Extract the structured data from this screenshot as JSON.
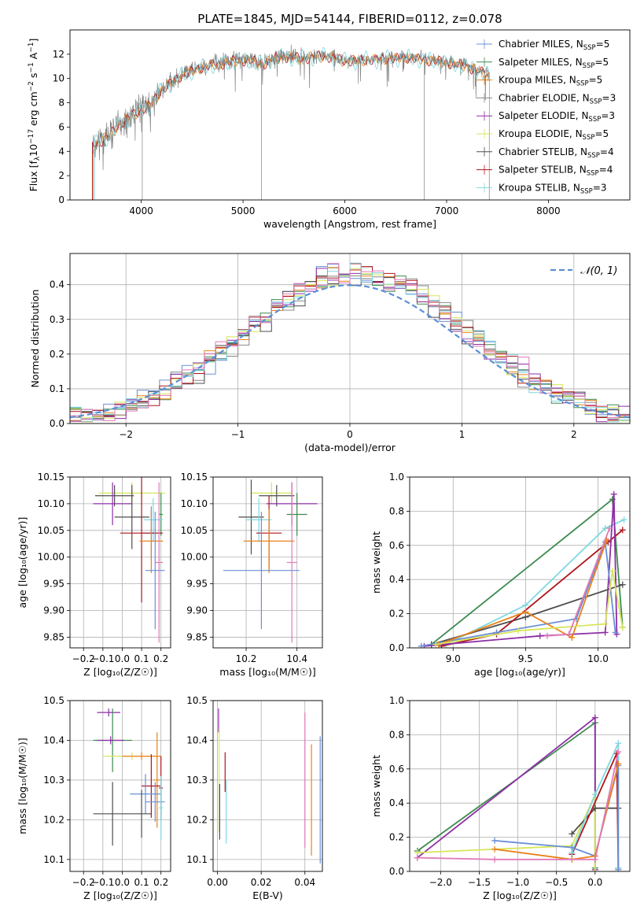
{
  "chart_data": [
    {
      "id": "spectrum",
      "type": "line",
      "title": "PLATE=1845, MJD=54144, FIBERID=0112, z=0.078",
      "xlabel": "wavelength [Angstrom, rest frame]",
      "ylabel_parts": [
        "Flux [f",
        "λ",
        "10",
        "−17",
        " erg cm",
        "−2",
        " s",
        "−1",
        " A",
        "−1",
        "]"
      ],
      "xlim": [
        3300,
        8800
      ],
      "ylim": [
        0,
        14
      ],
      "xticks": [
        4000,
        5000,
        6000,
        7000,
        8000
      ],
      "yticks": [
        0,
        2,
        4,
        6,
        8,
        10,
        12
      ],
      "grid": false,
      "legend_placement": "upper-right",
      "legend": [
        {
          "name": "Chabrier MILES",
          "nssp": "5",
          "color": "#6a8fd6"
        },
        {
          "name": "Salpeter MILES",
          "nssp": "5",
          "color": "#3d8a4e"
        },
        {
          "name": "Kroupa MILES",
          "nssp": "5",
          "color": "#e8821a"
        },
        {
          "name": "Chabrier ELODIE",
          "nssp": "3",
          "color": "#888888"
        },
        {
          "name": "Salpeter ELODIE",
          "nssp": "3",
          "color": "#8e2ea7"
        },
        {
          "name": "Kroupa ELODIE",
          "nssp": "5",
          "color": "#d7e65a"
        },
        {
          "name": "Chabrier STELIB",
          "nssp": "4",
          "color": "#4d4d4d"
        },
        {
          "name": "Salpeter STELIB",
          "nssp": "4",
          "color": "#b0141c"
        },
        {
          "name": "Kroupa STELIB",
          "nssp": "3",
          "color": "#7fd8e0"
        }
      ],
      "nssp_sub": "SSP",
      "nssp_prefix": "N",
      "data_color": "#808080",
      "model_colors": [
        "#b0141c",
        "#e8821a",
        "#7fd8e0"
      ],
      "anchors_x": [
        3520,
        3600,
        3700,
        3800,
        3900,
        4000,
        4100,
        4200,
        4300,
        4400,
        4500,
        4600,
        4700,
        4800,
        4900,
        5000,
        5100,
        5200,
        5300,
        5400,
        5500,
        5600,
        5700,
        5800,
        5900,
        6000,
        6200,
        6400,
        6600,
        6800,
        7000,
        7200,
        7400
      ],
      "anchors_y": [
        4.6,
        4.9,
        5.5,
        6.4,
        7.0,
        7.5,
        8.0,
        9.1,
        9.8,
        10.3,
        10.7,
        11.0,
        11.2,
        11.3,
        11.5,
        11.6,
        11.5,
        11.3,
        11.7,
        11.9,
        11.8,
        11.7,
        11.9,
        11.9,
        11.8,
        11.5,
        11.6,
        11.7,
        11.8,
        11.6,
        11.4,
        11.1,
        10.4
      ]
    },
    {
      "id": "residuals",
      "type": "step",
      "xlabel": "(data-model)/error",
      "ylabel": "Normed distribution",
      "xlim": [
        -2.5,
        2.5
      ],
      "ylim": [
        0,
        0.49
      ],
      "xticks": [
        -2,
        -1,
        0,
        1,
        2
      ],
      "yticks": [
        0.0,
        0.1,
        0.2,
        0.3,
        0.4
      ],
      "grid": true,
      "bin_width": 0.1,
      "legend": "𝒩(0, 1)",
      "legend_placement": "upper-right",
      "normal_color": "#5b8fd6",
      "series_colors": [
        "#6a8fd6",
        "#3d8a4e",
        "#e8821a",
        "#888888",
        "#8e2ea7",
        "#d7e65a",
        "#4d4d4d",
        "#b0141c",
        "#7fd8e0",
        "#e07ab8"
      ]
    },
    {
      "id": "age_vs_Z",
      "type": "errorbar",
      "xlabel": "Z [log₁₀(Z/Z☉)]",
      "ylabel": "age  [log₁₀(age/yr)]",
      "xlim": [
        -0.27,
        0.25
      ],
      "ylim": [
        9.83,
        10.15
      ],
      "xticks": [
        -0.2,
        -0.1,
        0.0,
        0.1,
        0.2
      ],
      "yticks": [
        9.85,
        9.9,
        9.95,
        10.0,
        10.05,
        10.1,
        10.15
      ],
      "grid": true,
      "points": [
        {
          "x": 0.05,
          "y": 10.12,
          "xe": 0.17,
          "ye": 0.02,
          "c": "#d7e65a"
        },
        {
          "x": -0.04,
          "y": 10.115,
          "xe": 0.1,
          "ye": 0.02,
          "c": "#4d4d4d"
        },
        {
          "x": -0.05,
          "y": 10.1,
          "xe": 0.1,
          "ye": 0.04,
          "c": "#8e2ea7"
        },
        {
          "x": 0.2,
          "y": 10.08,
          "xe": 0.01,
          "ye": 0.04,
          "c": "#3d8a4e"
        },
        {
          "x": 0.05,
          "y": 10.075,
          "xe": 0.09,
          "ye": 0.06,
          "c": "#4d4d4d"
        },
        {
          "x": 0.16,
          "y": 10.07,
          "xe": 0.05,
          "ye": 0.04,
          "c": "#7fd8e0"
        },
        {
          "x": 0.15,
          "y": 10.045,
          "xe": 0.05,
          "ye": 0.05,
          "c": "#6a8fd6"
        },
        {
          "x": 0.1,
          "y": 10.045,
          "xe": 0.11,
          "ye": 0.13,
          "c": "#b0141c"
        },
        {
          "x": 0.15,
          "y": 10.03,
          "xe": 0.06,
          "ye": 0.06,
          "c": "#e8821a"
        },
        {
          "x": 0.19,
          "y": 9.99,
          "xe": 0.02,
          "ye": 0.15,
          "c": "#e07ab8"
        },
        {
          "x": 0.17,
          "y": 9.975,
          "xe": 0.05,
          "ye": 0.11,
          "c": "#6a8fd6"
        }
      ]
    },
    {
      "id": "age_vs_mass",
      "type": "errorbar",
      "xlabel": "mass [log₁₀(M/M☉)]",
      "ylabel": "",
      "xlim": [
        10.07,
        10.5
      ],
      "ylim": [
        9.83,
        10.15
      ],
      "xticks": [
        10.2,
        10.4
      ],
      "yticks": [
        9.85,
        9.9,
        9.95,
        10.0,
        10.05,
        10.1,
        10.15
      ],
      "grid": true,
      "points": [
        {
          "x": 10.3,
          "y": 10.12,
          "xe": 0.08,
          "ye": 0.02,
          "c": "#d7e65a"
        },
        {
          "x": 10.32,
          "y": 10.115,
          "xe": 0.07,
          "ye": 0.02,
          "c": "#4d4d4d"
        },
        {
          "x": 10.38,
          "y": 10.1,
          "xe": 0.1,
          "ye": 0.04,
          "c": "#8e2ea7"
        },
        {
          "x": 10.4,
          "y": 10.08,
          "xe": 0.04,
          "ye": 0.04,
          "c": "#3d8a4e"
        },
        {
          "x": 10.22,
          "y": 10.075,
          "xe": 0.05,
          "ye": 0.07,
          "c": "#4d4d4d"
        },
        {
          "x": 10.25,
          "y": 10.07,
          "xe": 0.05,
          "ye": 0.04,
          "c": "#7fd8e0"
        },
        {
          "x": 10.29,
          "y": 10.045,
          "xe": 0.05,
          "ye": 0.07,
          "c": "#b0141c"
        },
        {
          "x": 10.29,
          "y": 10.03,
          "xe": 0.1,
          "ye": 0.06,
          "c": "#e8821a"
        },
        {
          "x": 10.38,
          "y": 9.99,
          "xe": 0.02,
          "ye": 0.15,
          "c": "#e07ab8"
        },
        {
          "x": 10.26,
          "y": 9.975,
          "xe": 0.15,
          "ye": 0.11,
          "c": "#6a8fd6"
        }
      ]
    },
    {
      "id": "weights_vs_age",
      "type": "line",
      "xlabel": "age  [log₁₀(age/yr)]",
      "ylabel": "mass weight",
      "xlim": [
        8.7,
        10.22
      ],
      "ylim": [
        0,
        1.0
      ],
      "xticks": [
        9.0,
        9.5,
        10.0
      ],
      "yticks": [
        0.0,
        0.2,
        0.4,
        0.6,
        0.8,
        1.0
      ],
      "grid": true,
      "series": [
        {
          "c": "#3d8a4e",
          "x": [
            8.85,
            10.1,
            10.17
          ],
          "y": [
            0.02,
            0.87,
            0.12
          ]
        },
        {
          "c": "#7fd8e0",
          "x": [
            8.95,
            9.5,
            10.05,
            10.18
          ],
          "y": [
            0.02,
            0.25,
            0.7,
            0.75
          ]
        },
        {
          "c": "#4d4d4d",
          "x": [
            8.85,
            9.5,
            10.17
          ],
          "y": [
            0.02,
            0.18,
            0.37
          ]
        },
        {
          "c": "#b0141c",
          "x": [
            8.92,
            9.3,
            10.07,
            10.17
          ],
          "y": [
            0.01,
            0.08,
            0.62,
            0.69
          ]
        },
        {
          "c": "#8e2ea7",
          "x": [
            8.8,
            9.6,
            10.05,
            10.11,
            10.13
          ],
          "y": [
            0.01,
            0.07,
            0.09,
            0.9,
            0.08
          ]
        },
        {
          "c": "#6a8fd6",
          "x": [
            8.78,
            9.3,
            9.85,
            10.05,
            10.12
          ],
          "y": [
            0.01,
            0.09,
            0.17,
            0.62,
            0.09
          ]
        },
        {
          "c": "#e8821a",
          "x": [
            8.9,
            9.5,
            9.82,
            10.06
          ],
          "y": [
            0.02,
            0.21,
            0.06,
            0.63
          ]
        },
        {
          "c": "#d7e65a",
          "x": [
            8.88,
            9.45,
            10.05,
            10.1,
            10.17
          ],
          "y": [
            0.02,
            0.1,
            0.14,
            0.45,
            0.12
          ]
        },
        {
          "c": "#e07ab8",
          "x": [
            9.65,
            9.8,
            10.08
          ],
          "y": [
            0.07,
            0.08,
            0.7
          ]
        }
      ]
    },
    {
      "id": "mass_vs_Z",
      "type": "errorbar",
      "xlabel": "Z [log₁₀(Z/Z☉)]",
      "ylabel": "mass [log₁₀(M/M☉)]",
      "xlim": [
        -0.27,
        0.25
      ],
      "ylim": [
        10.07,
        10.5
      ],
      "xticks": [
        -0.2,
        -0.1,
        0.0,
        0.1,
        0.2
      ],
      "yticks": [
        10.1,
        10.2,
        10.3,
        10.4,
        10.5
      ],
      "grid": true,
      "points": [
        {
          "x": -0.07,
          "y": 10.47,
          "xe": 0.06,
          "ye": 0.01,
          "c": "#8e2ea7"
        },
        {
          "x": -0.05,
          "y": 10.4,
          "xe": 0.1,
          "ye": 0.08,
          "c": "#3d8a4e"
        },
        {
          "x": -0.06,
          "y": 10.4,
          "xe": 0.07,
          "ye": 0.01,
          "c": "#8e2ea7"
        },
        {
          "x": 0.05,
          "y": 10.36,
          "xe": 0.15,
          "ye": 0.01,
          "c": "#d7e65a"
        },
        {
          "x": 0.1,
          "y": 10.36,
          "xe": 0.1,
          "ye": 0.01,
          "c": "#e8821a"
        },
        {
          "x": 0.18,
          "y": 10.3,
          "xe": 0.02,
          "ye": 0.12,
          "c": "#e8821a"
        },
        {
          "x": 0.15,
          "y": 10.285,
          "xe": 0.05,
          "ye": 0.08,
          "c": "#b0141c"
        },
        {
          "x": 0.2,
          "y": 10.28,
          "xe": 0.01,
          "ye": 0.08,
          "c": "#b0141c"
        },
        {
          "x": 0.12,
          "y": 10.265,
          "xe": 0.08,
          "ye": 0.05,
          "c": "#6a8fd6"
        },
        {
          "x": 0.17,
          "y": 10.245,
          "xe": 0.05,
          "ye": 0.05,
          "c": "#6a8fd6"
        },
        {
          "x": 0.2,
          "y": 10.23,
          "xe": 0.01,
          "ye": 0.08,
          "c": "#7fd8e0"
        },
        {
          "x": -0.05,
          "y": 10.215,
          "xe": 0.1,
          "ye": 0.08,
          "c": "#4d4d4d"
        },
        {
          "x": 0.1,
          "y": 10.215,
          "xe": 0.05,
          "ye": 0.06,
          "c": "#4d4d4d"
        }
      ]
    },
    {
      "id": "mass_vs_EBV",
      "type": "errorbar",
      "xlabel": "E(B-V)",
      "ylabel": "",
      "xlim": [
        -0.002,
        0.048
      ],
      "ylim": [
        10.07,
        10.5
      ],
      "xticks": [
        0.0,
        0.02,
        0.04
      ],
      "yticks": [
        10.1,
        10.2,
        10.3,
        10.4,
        10.5
      ],
      "grid": true,
      "points": [
        {
          "x": 0.0005,
          "y": 10.45,
          "xe": 0,
          "ye": 0.03,
          "c": "#8e2ea7"
        },
        {
          "x": 0.0008,
          "y": 10.3,
          "xe": 0,
          "ye": 0.13,
          "c": "#d7e65a"
        },
        {
          "x": 0.001,
          "y": 10.22,
          "xe": 0,
          "ye": 0.07,
          "c": "#4d4d4d"
        },
        {
          "x": 0.0035,
          "y": 10.32,
          "xe": 0,
          "ye": 0.05,
          "c": "#b0141c"
        },
        {
          "x": 0.004,
          "y": 10.22,
          "xe": 0,
          "ye": 0.08,
          "c": "#7fd8e0"
        },
        {
          "x": 0.04,
          "y": 10.3,
          "xe": 0,
          "ye": 0.17,
          "c": "#e07ab8"
        },
        {
          "x": 0.043,
          "y": 10.25,
          "xe": 0,
          "ye": 0.14,
          "c": "#e8821a"
        },
        {
          "x": 0.047,
          "y": 10.25,
          "xe": 0,
          "ye": 0.16,
          "c": "#6a8fd6"
        }
      ]
    },
    {
      "id": "weights_vs_Z",
      "type": "line",
      "xlabel": "Z [log₁₀(Z/Z☉)]",
      "ylabel": "mass weight",
      "xlim": [
        -2.4,
        0.45
      ],
      "ylim": [
        0,
        1.0
      ],
      "xticks": [
        -2.0,
        -1.5,
        -1.0,
        -0.5,
        0.0
      ],
      "yticks": [
        0.0,
        0.2,
        0.4,
        0.6,
        0.8,
        1.0
      ],
      "grid": true,
      "series": [
        {
          "c": "#3d8a4e",
          "x": [
            -2.3,
            0.0,
            0.0
          ],
          "y": [
            0.12,
            0.87,
            0.02
          ]
        },
        {
          "c": "#8e2ea7",
          "x": [
            -2.3,
            0.0,
            0.0
          ],
          "y": [
            0.08,
            0.9,
            0.01
          ]
        },
        {
          "c": "#d7e65a",
          "x": [
            -2.3,
            -0.3,
            0.0,
            0.0
          ],
          "y": [
            0.11,
            0.15,
            0.45,
            0.0
          ]
        },
        {
          "c": "#4d4d4d",
          "x": [
            -0.3,
            0.0,
            0.3
          ],
          "y": [
            0.22,
            0.37,
            0.37
          ]
        },
        {
          "c": "#b0141c",
          "x": [
            -0.3,
            0.28,
            0.3
          ],
          "y": [
            0.1,
            0.69,
            0.02
          ]
        },
        {
          "c": "#7fd8e0",
          "x": [
            -0.3,
            0.0,
            0.3,
            0.3
          ],
          "y": [
            0.11,
            0.45,
            0.75,
            0.02
          ]
        },
        {
          "c": "#6a8fd6",
          "x": [
            -1.3,
            -0.3,
            0.0,
            0.3,
            0.3
          ],
          "y": [
            0.18,
            0.14,
            0.09,
            0.62,
            0.01
          ]
        },
        {
          "c": "#e8821a",
          "x": [
            -1.3,
            -0.3,
            0.0,
            0.3
          ],
          "y": [
            0.13,
            0.07,
            0.09,
            0.63
          ]
        },
        {
          "c": "#e07ab8",
          "x": [
            -2.3,
            -1.3,
            0.0,
            0.3
          ],
          "y": [
            0.08,
            0.07,
            0.07,
            0.7
          ]
        }
      ]
    }
  ]
}
